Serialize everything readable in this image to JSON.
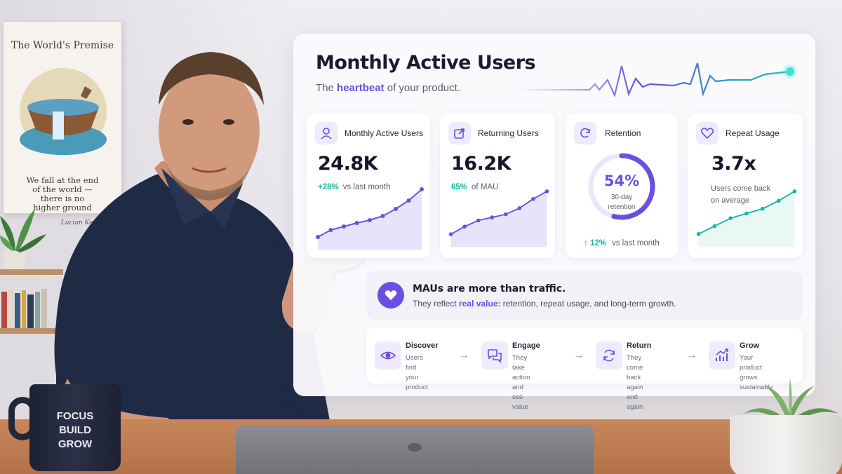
{
  "poster": {
    "title": "The World's Premise",
    "quote": "We fall at the end\nof the world —\nthere is no\nhigher ground",
    "signature": "Lucian Kezbach"
  },
  "mug": {
    "lines": [
      "FOCUS",
      "BUILD",
      "GROW"
    ]
  },
  "dashboard": {
    "title": "Monthly Active Users",
    "subtitle_prefix": "The",
    "subtitle_accent": "heartbeat",
    "subtitle_suffix": "of your product.",
    "accent_color": "#6a4fe0",
    "teal_color": "#14b8a0",
    "cards": [
      {
        "icon": "user-icon",
        "label": "Monthly Active Users",
        "value": "24.8K",
        "delta": "+28%",
        "delta_text": "vs last month",
        "trend": [
          1,
          2,
          2.5,
          3,
          3.4,
          4,
          5,
          6.2,
          7.8
        ]
      },
      {
        "icon": "return-icon",
        "label": "Returning Users",
        "value": "16.2K",
        "delta": "65%",
        "delta_text": "of MAU",
        "trend": [
          1,
          2,
          2.8,
          3.2,
          3.6,
          4.4,
          5.6,
          6.6
        ]
      },
      {
        "icon": "refresh-icon",
        "label": "Retention",
        "ring_value": "54%",
        "ring_fraction": 0.54,
        "ring_label": "30-day\nretention",
        "delta": "↑ 12%",
        "delta_text": "vs last month"
      },
      {
        "icon": "heart-icon",
        "label": "Repeat Usage",
        "value": "3.7x",
        "sub": "Users come back\non average",
        "trend": [
          1,
          2,
          3,
          3.6,
          4.2,
          5.2,
          6.4
        ]
      }
    ],
    "insight": {
      "title": "MAUs are more than traffic.",
      "text_prefix": "They reflect",
      "text_accent": "real value:",
      "text_suffix": "retention, repeat usage, and long-term growth."
    },
    "steps": [
      {
        "icon": "eye-icon",
        "title": "Discover",
        "text": "Users find\nyour product"
      },
      {
        "icon": "chat-icon",
        "title": "Engage",
        "text": "They take action\nand see value"
      },
      {
        "icon": "cycle-icon",
        "title": "Return",
        "text": "They come back\nagain and again"
      },
      {
        "icon": "growth-chart-icon",
        "title": "Grow",
        "text": "Your product grows\nsustainably"
      }
    ]
  }
}
